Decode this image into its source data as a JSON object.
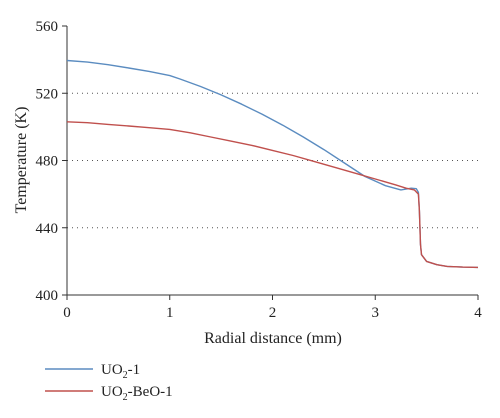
{
  "chart_data": {
    "type": "line",
    "xlabel": "Radial distance (mm)",
    "ylabel": "Temperature (K)",
    "xlim": [
      0,
      4
    ],
    "ylim": [
      400,
      560
    ],
    "xticks": [
      "0",
      "1",
      "2",
      "3",
      "4"
    ],
    "yticks": [
      "400",
      "440",
      "480",
      "520",
      "560"
    ],
    "grid": "horizontal dotted",
    "legend_position": "bottom-left",
    "series": [
      {
        "name": "UO2-1",
        "legend_main": "UO",
        "legend_sub": "2",
        "legend_suffix": "-1",
        "color": "#5b8cc0",
        "x": [
          0,
          0.2,
          0.4,
          0.6,
          0.8,
          1.0,
          1.1,
          1.3,
          1.5,
          1.7,
          1.9,
          2.1,
          2.3,
          2.5,
          2.7,
          2.9,
          3.1,
          3.25,
          3.35,
          3.4,
          3.42,
          3.43,
          3.44,
          3.45,
          3.5,
          3.6,
          3.7,
          3.85,
          4.0
        ],
        "y": [
          539.5,
          538.5,
          537,
          535,
          533,
          530.5,
          528.5,
          524,
          519,
          513.5,
          507.5,
          501,
          494,
          486.5,
          478.5,
          470.5,
          465,
          462.5,
          463.5,
          463.2,
          461,
          450,
          430,
          424,
          420,
          418,
          417,
          416.6,
          416.4
        ]
      },
      {
        "name": "UO2-BeO-1",
        "legend_main": "UO",
        "legend_sub": "2",
        "legend_suffix": "-BeO-1",
        "color": "#c0504d",
        "x": [
          0,
          0.2,
          0.4,
          0.6,
          0.8,
          1.0,
          1.2,
          1.4,
          1.6,
          1.8,
          2.0,
          2.2,
          2.4,
          2.6,
          2.8,
          3.0,
          3.2,
          3.3,
          3.38,
          3.42,
          3.43,
          3.44,
          3.45,
          3.5,
          3.6,
          3.7,
          3.85,
          4.0
        ],
        "y": [
          503,
          502.5,
          501.5,
          500.5,
          499.5,
          498.5,
          496.5,
          494,
          491.5,
          489,
          486,
          483,
          479.5,
          476,
          472.5,
          469,
          465.5,
          463.5,
          462.5,
          460,
          450,
          430,
          424,
          420,
          418,
          417,
          416.6,
          416.4
        ]
      }
    ]
  }
}
